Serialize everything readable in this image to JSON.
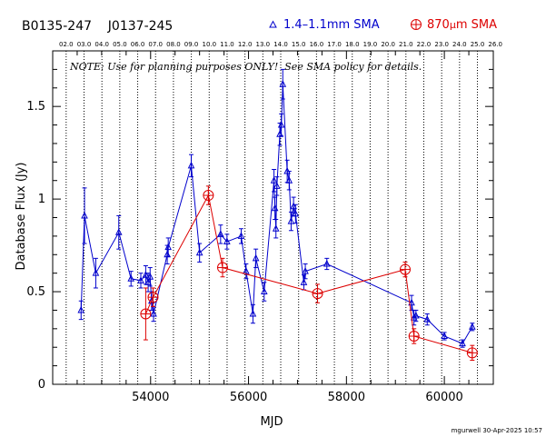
{
  "header": {
    "source_names": "B0135-247    J0137-245",
    "legend_blue": "1.4–1.1mm SMA",
    "legend_red_prefix": "870",
    "legend_red_mu": "μ",
    "legend_red_suffix": "m SMA"
  },
  "note": "NOTE: Use for planning purposes ONLY!  See SMA policy for details.",
  "footer": "mgurwell 30-Apr-2025 10:57",
  "colors": {
    "blue": "#0000cc",
    "red": "#dd0000",
    "axis": "#000000"
  },
  "chart_data": {
    "type": "scatter",
    "title": "B0135-247    J0137-245",
    "xlabel": "MJD",
    "ylabel": "Database Flux (Jy)",
    "xlim": [
      52000,
      61000
    ],
    "ylim": [
      0,
      1.8
    ],
    "x_ticks": [
      54000,
      56000,
      58000,
      60000
    ],
    "x_tick_labels": [
      "54000",
      "56000",
      "58000",
      "60000"
    ],
    "y_ticks": [
      0,
      0.5,
      1,
      1.5
    ],
    "y_tick_labels": [
      "0",
      "0.5",
      "1",
      "1.5"
    ],
    "top_axis_labels": [
      "02.0",
      "03.0",
      "04.0",
      "05.0",
      "06.0",
      "07.0",
      "08.0",
      "09.0",
      "10.0",
      "11.0",
      "12.0",
      "13.0",
      "14.0",
      "15.0",
      "16.0",
      "17.0",
      "18.0",
      "19.0",
      "20.0",
      "21.0",
      "22.0",
      "23.0",
      "24.0",
      "25.0",
      "26.0"
    ],
    "top_axis_start_mjd": 52275,
    "top_axis_step_days": 365.25,
    "year_gridlines": "dotted",
    "legend_placement": "top-right",
    "series": [
      {
        "name": "1.4–1.1mm SMA",
        "color": "#0000cc",
        "marker": "triangle",
        "points": [
          {
            "x": 52580,
            "y": 0.4,
            "err": 0.05
          },
          {
            "x": 52650,
            "y": 0.91,
            "err": 0.15
          },
          {
            "x": 52880,
            "y": 0.6,
            "err": 0.08
          },
          {
            "x": 53350,
            "y": 0.82,
            "err": 0.09
          },
          {
            "x": 53600,
            "y": 0.57,
            "err": 0.04
          },
          {
            "x": 53800,
            "y": 0.56,
            "err": 0.04
          },
          {
            "x": 53900,
            "y": 0.59,
            "err": 0.05
          },
          {
            "x": 53950,
            "y": 0.55,
            "err": 0.05
          },
          {
            "x": 53990,
            "y": 0.58,
            "err": 0.05
          },
          {
            "x": 54020,
            "y": 0.45,
            "err": 0.05
          },
          {
            "x": 54060,
            "y": 0.38,
            "err": 0.04
          },
          {
            "x": 54340,
            "y": 0.7,
            "err": 0.05
          },
          {
            "x": 54360,
            "y": 0.74,
            "err": 0.05
          },
          {
            "x": 54830,
            "y": 1.18,
            "err": 0.06
          },
          {
            "x": 55000,
            "y": 0.71,
            "err": 0.05
          },
          {
            "x": 55430,
            "y": 0.81,
            "err": 0.05
          },
          {
            "x": 55560,
            "y": 0.77,
            "err": 0.04
          },
          {
            "x": 55850,
            "y": 0.8,
            "err": 0.04
          },
          {
            "x": 55950,
            "y": 0.61,
            "err": 0.04
          },
          {
            "x": 56090,
            "y": 0.38,
            "err": 0.05
          },
          {
            "x": 56150,
            "y": 0.68,
            "err": 0.05
          },
          {
            "x": 56320,
            "y": 0.5,
            "err": 0.05
          },
          {
            "x": 56520,
            "y": 1.1,
            "err": 0.06
          },
          {
            "x": 56540,
            "y": 0.95,
            "err": 0.06
          },
          {
            "x": 56560,
            "y": 0.84,
            "err": 0.05
          },
          {
            "x": 56580,
            "y": 1.07,
            "err": 0.05
          },
          {
            "x": 56640,
            "y": 1.35,
            "err": 0.06
          },
          {
            "x": 56670,
            "y": 1.4,
            "err": 0.06
          },
          {
            "x": 56700,
            "y": 1.62,
            "err": 0.08
          },
          {
            "x": 56790,
            "y": 1.15,
            "err": 0.06
          },
          {
            "x": 56830,
            "y": 1.1,
            "err": 0.05
          },
          {
            "x": 56870,
            "y": 0.88,
            "err": 0.05
          },
          {
            "x": 56920,
            "y": 0.96,
            "err": 0.05
          },
          {
            "x": 56960,
            "y": 0.92,
            "err": 0.05
          },
          {
            "x": 57130,
            "y": 0.55,
            "err": 0.04
          },
          {
            "x": 57160,
            "y": 0.61,
            "err": 0.04
          },
          {
            "x": 57600,
            "y": 0.65,
            "err": 0.03
          },
          {
            "x": 59330,
            "y": 0.44,
            "err": 0.04
          },
          {
            "x": 59380,
            "y": 0.36,
            "err": 0.04
          },
          {
            "x": 59420,
            "y": 0.37,
            "err": 0.03
          },
          {
            "x": 59650,
            "y": 0.35,
            "err": 0.03
          },
          {
            "x": 60000,
            "y": 0.26,
            "err": 0.02
          },
          {
            "x": 60370,
            "y": 0.22,
            "err": 0.02
          },
          {
            "x": 60570,
            "y": 0.31,
            "err": 0.02
          }
        ]
      },
      {
        "name": "870μm SMA",
        "color": "#dd0000",
        "marker": "circle-plus",
        "points": [
          {
            "x": 53900,
            "y": 0.38,
            "err": 0.14
          },
          {
            "x": 54050,
            "y": 0.47,
            "err": 0.05
          },
          {
            "x": 55180,
            "y": 1.02,
            "err": 0.05
          },
          {
            "x": 55470,
            "y": 0.63,
            "err": 0.05
          },
          {
            "x": 57410,
            "y": 0.49,
            "err": 0.05
          },
          {
            "x": 59200,
            "y": 0.62,
            "err": 0.04
          },
          {
            "x": 59380,
            "y": 0.26,
            "err": 0.04
          },
          {
            "x": 60570,
            "y": 0.17,
            "err": 0.04
          }
        ]
      }
    ]
  }
}
